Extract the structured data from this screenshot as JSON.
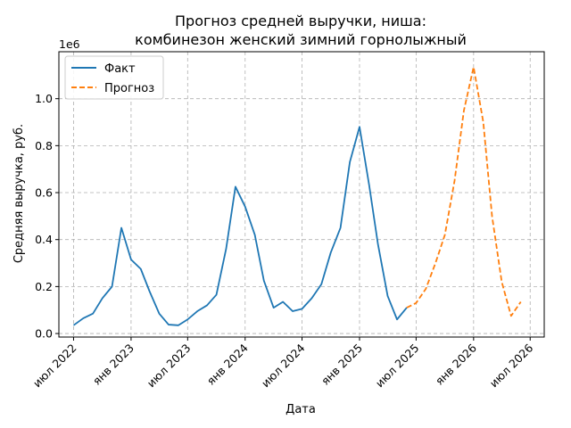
{
  "chart_data": {
    "type": "line",
    "title_lines": [
      "Прогноз средней выручки, ниша:",
      "комбинезон женский зимний горнолыжный"
    ],
    "xlabel": "Дата",
    "ylabel": "Средняя выручка, руб.",
    "y_offset_label": "1e6",
    "ylim": [
      -0.015,
      1.2
    ],
    "yticks": [
      0.0,
      0.2,
      0.4,
      0.6,
      0.8,
      1.0
    ],
    "ytick_labels": [
      "0.0",
      "0.2",
      "0.4",
      "0.6",
      "0.8",
      "1.0"
    ],
    "xlim": [
      "2022-05-15",
      "2026-08-15"
    ],
    "xticks": [
      "2022-07-01",
      "2023-01-01",
      "2023-07-01",
      "2024-01-01",
      "2024-07-01",
      "2025-01-01",
      "2025-07-01",
      "2026-01-01",
      "2026-07-01"
    ],
    "xtick_labels": [
      "июл 2022",
      "янв 2023",
      "июл 2023",
      "янв 2024",
      "июл 2024",
      "янв 2025",
      "июл 2025",
      "янв 2026",
      "июл 2026"
    ],
    "grid": true,
    "legend_position": "top-left",
    "series": [
      {
        "name": "Факт",
        "color": "#1f77b4",
        "dash": "solid",
        "x": [
          "2022-07-01",
          "2022-08-01",
          "2022-09-01",
          "2022-10-01",
          "2022-11-01",
          "2022-12-01",
          "2023-01-01",
          "2023-02-01",
          "2023-03-01",
          "2023-04-01",
          "2023-05-01",
          "2023-06-01",
          "2023-07-01",
          "2023-08-01",
          "2023-09-01",
          "2023-10-01",
          "2023-11-01",
          "2023-12-01",
          "2024-01-01",
          "2024-02-01",
          "2024-03-01",
          "2024-04-01",
          "2024-05-01",
          "2024-06-01",
          "2024-07-01",
          "2024-08-01",
          "2024-09-01",
          "2024-10-01",
          "2024-11-01",
          "2024-12-01",
          "2025-01-01",
          "2025-02-01",
          "2025-03-01",
          "2025-04-01",
          "2025-05-01",
          "2025-06-01"
        ],
        "y": [
          0.035,
          0.065,
          0.085,
          0.15,
          0.2,
          0.45,
          0.315,
          0.275,
          0.18,
          0.085,
          0.038,
          0.035,
          0.06,
          0.095,
          0.12,
          0.165,
          0.36,
          0.625,
          0.54,
          0.42,
          0.225,
          0.11,
          0.135,
          0.095,
          0.105,
          0.15,
          0.21,
          0.345,
          0.45,
          0.73,
          0.88,
          0.63,
          0.38,
          0.16,
          0.06,
          0.11
        ]
      },
      {
        "name": "Прогноз",
        "color": "#ff7f0e",
        "dash": "dashed",
        "x": [
          "2025-06-01",
          "2025-07-01",
          "2025-08-01",
          "2025-09-01",
          "2025-10-01",
          "2025-11-01",
          "2025-12-01",
          "2026-01-01",
          "2026-02-01",
          "2026-03-01",
          "2026-04-01",
          "2026-05-01",
          "2026-06-01"
        ],
        "y": [
          0.11,
          0.13,
          0.19,
          0.3,
          0.42,
          0.65,
          0.95,
          1.135,
          0.9,
          0.5,
          0.22,
          0.075,
          0.135
        ]
      }
    ]
  }
}
